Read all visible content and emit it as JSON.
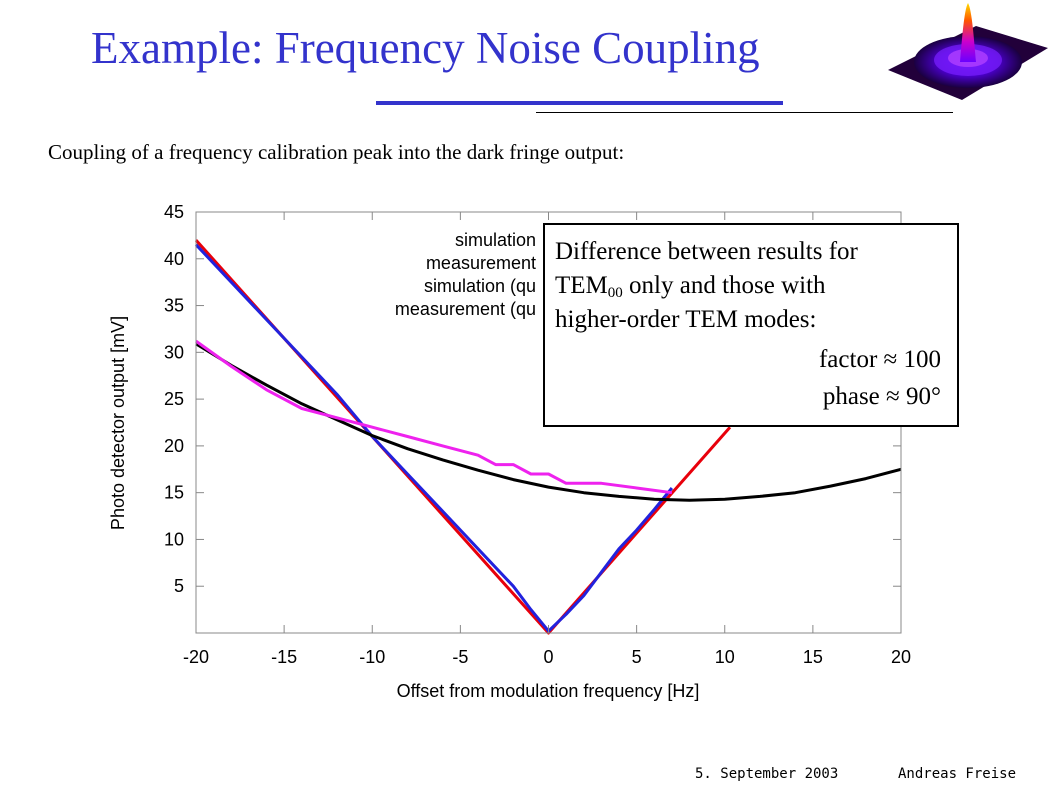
{
  "slide": {
    "title": "Example: Frequency Noise Coupling",
    "subtitle": "Coupling of a frequency calibration peak into the dark fringe output:"
  },
  "footer": {
    "date": "5. September 2003",
    "author": "Andreas Freise"
  },
  "infobox": {
    "line1": "Difference between results for",
    "line2_pre": "TEM",
    "line2_sub": "00",
    "line2_post": " only and those with",
    "line3": "higher-order TEM modes:",
    "line4": "factor ≈ 100",
    "line5": "phase ≈ 90°"
  },
  "chart_data": {
    "type": "line",
    "xlabel": "Offset from modulation frequency [Hz]",
    "ylabel": "Photo detector output [mV]",
    "xlim": [
      -20,
      20
    ],
    "ylim": [
      0,
      45
    ],
    "xticks": [
      -20,
      -15,
      -10,
      -5,
      0,
      5,
      10,
      15,
      20
    ],
    "yticks": [
      5,
      10,
      15,
      20,
      25,
      30,
      35,
      40,
      45
    ],
    "grid": false,
    "legend_position": "top-right",
    "series": [
      {
        "name": "simulation",
        "color": "#e8000b",
        "x": [
          -20,
          0,
          10.3
        ],
        "y": [
          42,
          0,
          22
        ]
      },
      {
        "name": "measurement",
        "color": "#2222dd",
        "x": [
          -20,
          -18,
          -16,
          -14,
          -12,
          -10,
          -8,
          -6,
          -4,
          -2,
          -1,
          0,
          1,
          2,
          3,
          4,
          5,
          6,
          7
        ],
        "y": [
          41.5,
          37.5,
          33.5,
          29.5,
          25.5,
          21,
          17,
          13,
          9,
          5,
          2.5,
          0.2,
          2,
          4,
          6.5,
          9,
          11,
          13.2,
          15.5
        ]
      },
      {
        "name": "simulation (qu",
        "color": "#000000",
        "x": [
          -20,
          -18,
          -16,
          -14,
          -12,
          -10,
          -8,
          -6,
          -4,
          -2,
          0,
          2,
          4,
          6,
          8,
          10,
          12,
          14,
          16,
          18,
          20
        ],
        "y": [
          30.9,
          28.6,
          26.5,
          24.5,
          22.8,
          21.1,
          19.7,
          18.5,
          17.4,
          16.4,
          15.6,
          15,
          14.6,
          14.3,
          14.2,
          14.3,
          14.6,
          15,
          15.7,
          16.5,
          17.5
        ]
      },
      {
        "name": "measurement (qu",
        "color": "#ee22ee",
        "x": [
          -20,
          -18,
          -16,
          -14,
          -12,
          -10,
          -8,
          -6,
          -4,
          -3,
          -2,
          -1,
          0,
          1,
          2,
          3,
          5,
          7
        ],
        "y": [
          31.2,
          28.5,
          26,
          24,
          23,
          22,
          21,
          20,
          19,
          18,
          18,
          17,
          17,
          16,
          16,
          16,
          15.5,
          15
        ]
      }
    ]
  }
}
